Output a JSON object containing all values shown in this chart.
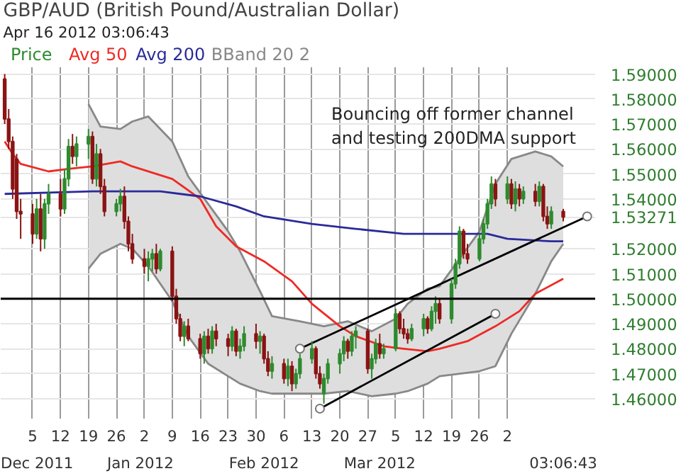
{
  "chart_data": {
    "type": "candlestick",
    "title": "GBP/AUD (British Pound/Australian Dollar)",
    "subtitle": "Apr 16 2012 03:06:43",
    "annotations": [
      "Bouncing off former channel\nand testing 200DMA support"
    ],
    "xlim": [
      "2011-11-27",
      "2012-04-24"
    ],
    "ylim": [
      1.452,
      1.5927
    ],
    "xticks": [
      {
        "value": "2011-12-05",
        "label": "5"
      },
      {
        "value": "2011-12-12",
        "label": "12"
      },
      {
        "value": "2011-12-19",
        "label": "19"
      },
      {
        "value": "2011-12-26",
        "label": "26"
      },
      {
        "value": "2012-01-02",
        "label": "2"
      },
      {
        "value": "2012-01-09",
        "label": "9"
      },
      {
        "value": "2012-01-16",
        "label": "16"
      },
      {
        "value": "2012-01-23",
        "label": "23"
      },
      {
        "value": "2012-01-30",
        "label": "30"
      },
      {
        "value": "2012-02-06",
        "label": "6"
      },
      {
        "value": "2012-02-13",
        "label": "13"
      },
      {
        "value": "2012-02-20",
        "label": "20"
      },
      {
        "value": "2012-02-27",
        "label": "27"
      },
      {
        "value": "2012-03-05",
        "label": "5"
      },
      {
        "value": "2012-03-12",
        "label": "12"
      },
      {
        "value": "2012-03-19",
        "label": "19"
      },
      {
        "value": "2012-03-26",
        "label": "26"
      },
      {
        "value": "2012-04-02",
        "label": "2"
      }
    ],
    "x2lim": [
      "2011-11-27",
      "2012-04-24"
    ],
    "x2ticks": [
      {
        "value": "2011-12-06",
        "label": "Dec 2011"
      },
      {
        "value": "2012-01-01",
        "label": "Jan 2012"
      },
      {
        "value": "2012-02-01",
        "label": "Feb 2012"
      },
      {
        "value": "2012-03-01",
        "label": "Mar 2012"
      },
      {
        "value": "2012-04-16",
        "label": "03:06:43"
      }
    ],
    "yticks": [
      {
        "value": 1.46,
        "label": "1.46000"
      },
      {
        "value": 1.47,
        "label": "1.47000"
      },
      {
        "value": 1.48,
        "label": "1.48000"
      },
      {
        "value": 1.49,
        "label": "1.49000"
      },
      {
        "value": 1.5,
        "label": "1.50000"
      },
      {
        "value": 1.51,
        "label": "1.51000"
      },
      {
        "value": 1.52,
        "label": "1.52000"
      },
      {
        "value": 1.53271,
        "label": "1.53271"
      },
      {
        "value": 1.54,
        "label": "1.54000"
      },
      {
        "value": 1.55,
        "label": "1.55000"
      },
      {
        "value": 1.56,
        "label": "1.56000"
      },
      {
        "value": 1.57,
        "label": "1.57000"
      },
      {
        "value": 1.58,
        "label": "1.58000"
      },
      {
        "value": 1.59,
        "label": "1.59000"
      }
    ],
    "grid": true,
    "ref_lines": [
      {
        "axis": "y",
        "value": 1.5,
        "color": "#000000"
      }
    ],
    "series": [
      {
        "name": "BBand 20 2",
        "type": "line",
        "color": "#888888",
        "upper": [
          1.578,
          1.569,
          1.568,
          1.571,
          1.573,
          1.563,
          1.549,
          1.538,
          1.527,
          1.519,
          1.503,
          1.493,
          1.491,
          1.489,
          1.491,
          1.487,
          1.492,
          1.498,
          1.504,
          1.505,
          1.516,
          1.527,
          1.546,
          1.556,
          1.559,
          1.557,
          1.553
        ],
        "x": [
          "2011-12-19",
          "2011-12-22",
          "2011-12-27",
          "2011-12-30",
          "2012-01-03",
          "2012-01-09",
          "2012-01-13",
          "2012-01-18",
          "2012-01-23",
          "2012-01-26",
          "2012-01-31",
          "2012-02-03",
          "2012-02-10",
          "2012-02-16",
          "2012-02-22",
          "2012-02-28",
          "2012-03-05",
          "2012-03-08",
          "2012-03-13",
          "2012-03-16",
          "2012-03-21",
          "2012-03-26",
          "2012-03-30",
          "2012-04-03",
          "2012-04-09",
          "2012-04-13",
          "2012-04-16"
        ],
        "values": [
          1.578,
          1.569,
          1.568,
          1.571,
          1.573,
          1.563,
          1.549,
          1.538,
          1.527,
          1.519,
          1.503,
          1.493,
          1.491,
          1.489,
          1.491,
          1.487,
          1.492,
          1.498,
          1.504,
          1.505,
          1.516,
          1.527,
          1.546,
          1.556,
          1.559,
          1.557,
          1.553
        ],
        "lower": [
          1.512,
          1.518,
          1.522,
          1.52,
          1.513,
          1.499,
          1.485,
          1.474,
          1.469,
          1.466,
          1.463,
          1.462,
          1.462,
          1.462,
          1.463,
          1.461,
          1.462,
          1.463,
          1.466,
          1.469,
          1.47,
          1.471,
          1.473,
          1.486,
          1.502,
          1.515,
          1.522
        ]
      },
      {
        "type": "line",
        "color": "#888888",
        "x": [
          "2011-12-19",
          "2011-12-22",
          "2011-12-27",
          "2011-12-30",
          "2012-01-03",
          "2012-01-09",
          "2012-01-13",
          "2012-01-18",
          "2012-01-23",
          "2012-01-26",
          "2012-01-31",
          "2012-02-03",
          "2012-02-10",
          "2012-02-16",
          "2012-02-22",
          "2012-02-28",
          "2012-03-05",
          "2012-03-08",
          "2012-03-13",
          "2012-03-16",
          "2012-03-21",
          "2012-03-26",
          "2012-03-30",
          "2012-04-03",
          "2012-04-09",
          "2012-04-13",
          "2012-04-16"
        ],
        "values": [
          1.512,
          1.518,
          1.522,
          1.52,
          1.513,
          1.499,
          1.485,
          1.474,
          1.469,
          1.466,
          1.463,
          1.462,
          1.462,
          1.462,
          1.463,
          1.461,
          1.462,
          1.463,
          1.466,
          1.469,
          1.47,
          1.471,
          1.473,
          1.486,
          1.502,
          1.515,
          1.522
        ]
      },
      {
        "name": "Avg 50",
        "type": "line",
        "color": "#ee2a24",
        "x": [
          "2011-11-28",
          "2011-11-30",
          "2011-12-02",
          "2011-12-09",
          "2011-12-14",
          "2011-12-20",
          "2011-12-27",
          "2011-12-30",
          "2012-01-09",
          "2012-01-16",
          "2012-01-20",
          "2012-01-25",
          "2012-02-01",
          "2012-02-08",
          "2012-02-13",
          "2012-02-20",
          "2012-02-24",
          "2012-03-02",
          "2012-03-07",
          "2012-03-13",
          "2012-03-16",
          "2012-03-23",
          "2012-03-30",
          "2012-04-05",
          "2012-04-09",
          "2012-04-16"
        ],
        "values": [
          1.563,
          1.558,
          1.554,
          1.551,
          1.552,
          1.553,
          1.555,
          1.553,
          1.548,
          1.54,
          1.529,
          1.521,
          1.515,
          1.507,
          1.498,
          1.489,
          1.485,
          1.481,
          1.48,
          1.479,
          1.48,
          1.483,
          1.489,
          1.495,
          1.502,
          1.508
        ]
      },
      {
        "name": "Avg 200",
        "type": "line",
        "color": "#2a2a9a",
        "x": [
          "2011-11-28",
          "2011-12-20",
          "2012-01-06",
          "2012-01-16",
          "2012-01-25",
          "2012-02-01",
          "2012-02-13",
          "2012-02-24",
          "2012-03-07",
          "2012-03-16",
          "2012-03-28",
          "2012-04-02",
          "2012-04-13",
          "2012-04-16"
        ],
        "values": [
          1.542,
          1.543,
          1.543,
          1.541,
          1.537,
          1.533,
          1.53,
          1.528,
          1.526,
          1.526,
          1.526,
          1.524,
          1.523,
          1.523
        ]
      },
      {
        "type": "line",
        "color": "#000000",
        "marker": "circle",
        "x": [
          "2012-02-10",
          "2012-04-22"
        ],
        "values": [
          1.48,
          1.533
        ]
      },
      {
        "type": "line",
        "color": "#000000",
        "marker": "circle",
        "x": [
          "2012-02-15",
          "2012-03-30"
        ],
        "values": [
          1.456,
          1.494
        ]
      },
      {
        "name": "Price",
        "color": "#2e8b2e",
        "colors": [
          "#8b1414",
          "#8b1414",
          "#8b1414",
          "#8b1414",
          "#8b1414",
          "#8b1414",
          "#2e8b2e",
          "#8b1414",
          "#2e8b2e",
          "#2e8b2e",
          "#8b1414",
          "#2e8b2e",
          "#2e8b2e",
          "#8b1414",
          "#2e8b2e",
          "#2e8b2e",
          "#8b1414",
          "#2e8b2e",
          "#8b1414",
          "#8b1414",
          "#2e8b2e",
          "#2e8b2e",
          "#8b1414",
          "#8b1414",
          "#8b1414",
          "#8b1414",
          "#2e8b2e",
          "#2e8b2e",
          "#8b1414",
          "#2e8b2e",
          "#8b1414",
          "#8b1414",
          "#8b1414",
          "#2e8b2e",
          "#8b1414",
          "#8b1414",
          "#2e8b2e",
          "#8b1414",
          "#2e8b2e",
          "#8b1414",
          "#8b1414",
          "#2e8b2e",
          "#8b1414",
          "#2e8b2e",
          "#2e8b2e",
          "#8b1414",
          "#2e8b2e",
          "#8b1414",
          "#8b1414",
          "#2e8b2e",
          "#8b1414",
          "#2e8b2e",
          "#8b1414",
          "#2e8b2e",
          "#2e8b2e",
          "#2e8b2e",
          "#8b1414",
          "#8b1414",
          "#2e8b2e",
          "#2e8b2e",
          "#2e8b2e",
          "#2e8b2e",
          "#8b1414",
          "#2e8b2e",
          "#2e8b2e",
          "#8b1414",
          "#2e8b2e",
          "#2e8b2e",
          "#8b1414",
          "#2e8b2e",
          "#2e8b2e",
          "#8b1414",
          "#8b1414",
          "#8b1414",
          "#2e8b2e",
          "#2e8b2e",
          "#8b1414",
          "#2e8b2e",
          "#2e8b2e",
          "#8b1414",
          "#2e8b2e",
          "#2e8b2e",
          "#2e8b2e",
          "#8b1414",
          "#8b1414",
          "#2e8b2e",
          "#2e8b2e",
          "#2e8b2e",
          "#2e8b2e",
          "#8b1414",
          "#2e8b2e",
          "#8b1414",
          "#2e8b2e",
          "#8b1414",
          "#2e8b2e",
          "#8b1414",
          "#2e8b2e",
          "#8b1414",
          "#8b1414",
          "#2e8b2e",
          "#8b1414"
        ],
        "x": [
          "2011-11-28",
          "2011-11-29",
          "2011-11-30",
          "2011-12-01",
          "2011-12-02",
          "2011-12-05",
          "2011-12-06",
          "2011-12-07",
          "2011-12-08",
          "2011-12-09",
          "2011-12-12",
          "2011-12-13",
          "2011-12-14",
          "2011-12-15",
          "2011-12-16",
          "2011-12-19",
          "2011-12-20",
          "2011-12-21",
          "2011-12-22",
          "2011-12-23",
          "2011-12-26",
          "2011-12-27",
          "2011-12-28",
          "2011-12-29",
          "2011-12-30",
          "2012-01-02",
          "2012-01-03",
          "2012-01-04",
          "2012-01-05",
          "2012-01-06",
          "2012-01-09",
          "2012-01-10",
          "2012-01-11",
          "2012-01-12",
          "2012-01-13",
          "2012-01-16",
          "2012-01-17",
          "2012-01-18",
          "2012-01-19",
          "2012-01-20",
          "2012-01-23",
          "2012-01-24",
          "2012-01-25",
          "2012-01-26",
          "2012-01-27",
          "2012-01-30",
          "2012-01-31",
          "2012-02-01",
          "2012-02-02",
          "2012-02-03",
          "2012-02-06",
          "2012-02-07",
          "2012-02-08",
          "2012-02-09",
          "2012-02-10",
          "2012-02-13",
          "2012-02-14",
          "2012-02-15",
          "2012-02-16",
          "2012-02-17",
          "2012-02-20",
          "2012-02-21",
          "2012-02-22",
          "2012-02-23",
          "2012-02-24",
          "2012-02-27",
          "2012-02-28",
          "2012-02-29",
          "2012-03-01",
          "2012-03-02",
          "2012-03-05",
          "2012-03-06",
          "2012-03-07",
          "2012-03-08",
          "2012-03-09",
          "2012-03-12",
          "2012-03-13",
          "2012-03-14",
          "2012-03-15",
          "2012-03-16",
          "2012-03-19",
          "2012-03-20",
          "2012-03-21",
          "2012-03-22",
          "2012-03-23",
          "2012-03-26",
          "2012-03-27",
          "2012-03-28",
          "2012-03-29",
          "2012-03-30",
          "2012-04-02",
          "2012-04-03",
          "2012-04-04",
          "2012-04-05",
          "2012-04-06",
          "2012-04-09",
          "2012-04-10",
          "2012-04-11",
          "2012-04-12",
          "2012-04-13",
          "2012-04-16"
        ],
        "ohlc": [
          [
            1.588,
            1.59,
            1.57,
            1.572
          ],
          [
            1.572,
            1.576,
            1.56,
            1.563
          ],
          [
            1.563,
            1.565,
            1.54,
            1.544
          ],
          [
            1.556,
            1.558,
            1.532,
            1.535
          ],
          [
            1.535,
            1.54,
            1.524,
            1.534
          ],
          [
            1.534,
            1.538,
            1.522,
            1.526
          ],
          [
            1.526,
            1.54,
            1.524,
            1.536
          ],
          [
            1.536,
            1.542,
            1.519,
            1.524
          ],
          [
            1.524,
            1.54,
            1.52,
            1.538
          ],
          [
            1.538,
            1.546,
            1.534,
            1.542
          ],
          [
            1.542,
            1.548,
            1.533,
            1.536
          ],
          [
            1.536,
            1.552,
            1.534,
            1.548
          ],
          [
            1.548,
            1.564,
            1.545,
            1.561
          ],
          [
            1.561,
            1.566,
            1.554,
            1.557
          ],
          [
            1.557,
            1.565,
            1.553,
            1.562
          ],
          [
            1.562,
            1.568,
            1.556,
            1.565
          ],
          [
            1.565,
            1.567,
            1.546,
            1.548
          ],
          [
            1.548,
            1.562,
            1.545,
            1.558
          ],
          [
            1.558,
            1.56,
            1.542,
            1.545
          ],
          [
            1.545,
            1.548,
            1.533,
            1.535
          ],
          [
            1.535,
            1.54,
            1.533,
            1.538
          ],
          [
            1.538,
            1.544,
            1.535,
            1.541
          ],
          [
            1.541,
            1.545,
            1.528,
            1.531
          ],
          [
            1.531,
            1.533,
            1.519,
            1.522
          ],
          [
            1.522,
            1.526,
            1.514,
            1.516
          ],
          [
            1.516,
            1.52,
            1.51,
            1.513
          ],
          [
            1.513,
            1.519,
            1.507,
            1.516
          ],
          [
            1.516,
            1.52,
            1.511,
            1.518
          ],
          [
            1.518,
            1.522,
            1.51,
            1.512
          ],
          [
            1.512,
            1.52,
            1.511,
            1.519
          ],
          [
            1.519,
            1.521,
            1.499,
            1.501
          ],
          [
            1.501,
            1.504,
            1.49,
            1.492
          ],
          [
            1.492,
            1.494,
            1.483,
            1.485
          ],
          [
            1.485,
            1.491,
            1.481,
            1.489
          ],
          [
            1.489,
            1.492,
            1.483,
            1.484
          ],
          [
            1.484,
            1.486,
            1.476,
            1.478
          ],
          [
            1.478,
            1.487,
            1.474,
            1.485
          ],
          [
            1.485,
            1.488,
            1.478,
            1.48
          ],
          [
            1.48,
            1.489,
            1.478,
            1.487
          ],
          [
            1.487,
            1.49,
            1.481,
            1.484
          ],
          [
            1.484,
            1.486,
            1.477,
            1.481
          ],
          [
            1.481,
            1.489,
            1.479,
            1.487
          ],
          [
            1.487,
            1.488,
            1.477,
            1.479
          ],
          [
            1.479,
            1.484,
            1.476,
            1.481
          ],
          [
            1.481,
            1.489,
            1.479,
            1.486
          ],
          [
            1.486,
            1.49,
            1.48,
            1.483
          ],
          [
            1.483,
            1.487,
            1.478,
            1.485
          ],
          [
            1.485,
            1.486,
            1.474,
            1.476
          ],
          [
            1.476,
            1.479,
            1.469,
            1.471
          ],
          [
            1.471,
            1.477,
            1.468,
            1.474
          ],
          [
            1.474,
            1.476,
            1.466,
            1.468
          ],
          [
            1.468,
            1.476,
            1.465,
            1.473
          ],
          [
            1.473,
            1.475,
            1.463,
            1.466
          ],
          [
            1.466,
            1.472,
            1.464,
            1.47
          ],
          [
            1.47,
            1.478,
            1.468,
            1.476
          ],
          [
            1.476,
            1.483,
            1.474,
            1.48
          ],
          [
            1.48,
            1.481,
            1.468,
            1.47
          ],
          [
            1.47,
            1.473,
            1.464,
            1.466
          ],
          [
            1.462,
            1.47,
            1.458,
            1.468
          ],
          [
            1.468,
            1.476,
            1.466,
            1.474
          ],
          [
            1.474,
            1.48,
            1.47,
            1.478
          ],
          [
            1.478,
            1.485,
            1.475,
            1.483
          ],
          [
            1.483,
            1.484,
            1.476,
            1.479
          ],
          [
            1.479,
            1.487,
            1.477,
            1.485
          ],
          [
            1.485,
            1.489,
            1.48,
            1.487
          ],
          [
            1.487,
            1.488,
            1.47,
            1.472
          ],
          [
            1.472,
            1.478,
            1.468,
            1.476
          ],
          [
            1.476,
            1.484,
            1.474,
            1.482
          ],
          [
            1.482,
            1.486,
            1.476,
            1.478
          ],
          [
            1.478,
            1.482,
            1.476,
            1.48
          ],
          [
            1.48,
            1.496,
            1.479,
            1.494
          ],
          [
            1.494,
            1.495,
            1.486,
            1.488
          ],
          [
            1.488,
            1.492,
            1.484,
            1.486
          ],
          [
            1.486,
            1.488,
            1.482,
            1.484
          ],
          [
            1.484,
            1.49,
            1.483,
            1.488
          ],
          [
            1.488,
            1.494,
            1.485,
            1.492
          ],
          [
            1.492,
            1.493,
            1.486,
            1.488
          ],
          [
            1.488,
            1.497,
            1.487,
            1.495
          ],
          [
            1.495,
            1.501,
            1.49,
            1.498
          ],
          [
            1.498,
            1.5,
            1.49,
            1.492
          ],
          [
            1.492,
            1.508,
            1.49,
            1.506
          ],
          [
            1.506,
            1.516,
            1.504,
            1.514
          ],
          [
            1.514,
            1.529,
            1.512,
            1.527
          ],
          [
            1.527,
            1.528,
            1.516,
            1.518
          ],
          [
            1.518,
            1.522,
            1.514,
            1.516
          ],
          [
            1.516,
            1.526,
            1.515,
            1.524
          ],
          [
            1.524,
            1.532,
            1.522,
            1.53
          ],
          [
            1.53,
            1.54,
            1.528,
            1.538
          ],
          [
            1.538,
            1.549,
            1.536,
            1.546
          ],
          [
            1.546,
            1.548,
            1.537,
            1.54
          ],
          [
            1.54,
            1.549,
            1.538,
            1.546
          ],
          [
            1.546,
            1.548,
            1.536,
            1.538
          ],
          [
            1.538,
            1.547,
            1.535,
            1.544
          ],
          [
            1.544,
            1.546,
            1.537,
            1.54
          ],
          [
            1.54,
            1.545,
            1.538,
            1.543
          ],
          [
            1.543,
            1.546,
            1.537,
            1.539
          ],
          [
            1.539,
            1.547,
            1.537,
            1.545
          ],
          [
            1.545,
            1.546,
            1.531,
            1.533
          ],
          [
            1.533,
            1.537,
            1.528,
            1.53
          ],
          [
            1.53,
            1.537,
            1.528,
            1.535
          ],
          [
            1.535,
            1.536,
            1.531,
            1.53271
          ]
        ]
      }
    ]
  }
}
